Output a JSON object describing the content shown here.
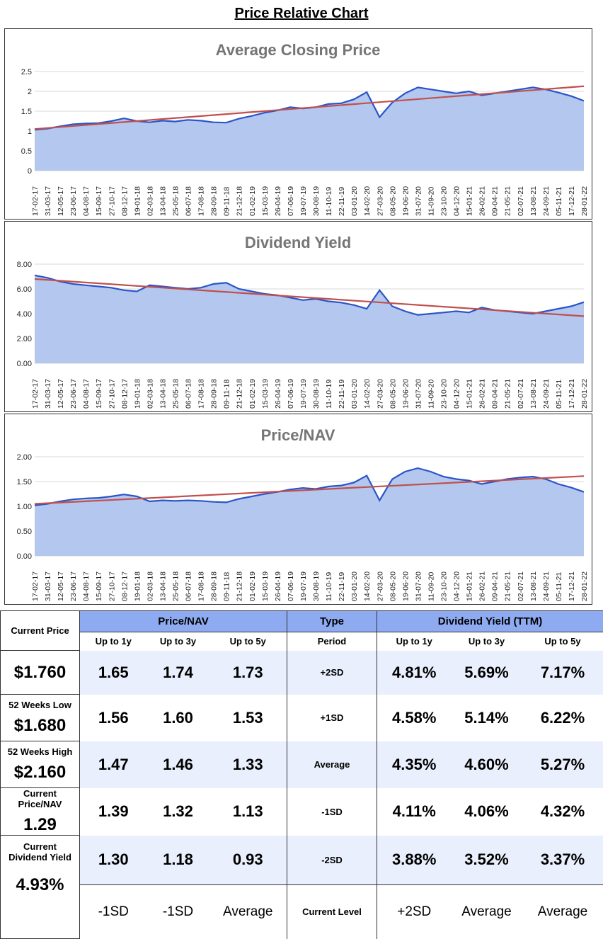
{
  "page": {
    "title": "Price Relative Chart"
  },
  "x_ticks": [
    "17-02-17",
    "31-03-17",
    "12-05-17",
    "23-06-17",
    "04-08-17",
    "15-09-17",
    "27-10-17",
    "08-12-17",
    "19-01-18",
    "02-03-18",
    "13-04-18",
    "25-05-18",
    "06-07-18",
    "17-08-18",
    "28-09-18",
    "09-11-18",
    "21-12-18",
    "01-02-19",
    "15-03-19",
    "26-04-19",
    "07-06-19",
    "19-07-19",
    "30-08-19",
    "11-10-19",
    "22-11-19",
    "03-01-20",
    "14-02-20",
    "27-03-20",
    "08-05-20",
    "19-06-20",
    "31-07-20",
    "11-09-20",
    "23-10-20",
    "04-12-20",
    "15-01-21",
    "26-02-21",
    "09-04-21",
    "21-05-21",
    "02-07-21",
    "13-08-21",
    "24-09-21",
    "05-11-21",
    "17-12-21",
    "28-01-22"
  ],
  "chart_data": [
    {
      "type": "area",
      "title": "Average Closing Price",
      "ylim": [
        0,
        2.5
      ],
      "yticks": [
        "0",
        "0.5",
        "1",
        "1.5",
        "2",
        "2.5"
      ],
      "grid": true,
      "series": [
        {
          "values": [
            1.03,
            1.06,
            1.12,
            1.17,
            1.19,
            1.2,
            1.25,
            1.32,
            1.25,
            1.22,
            1.26,
            1.24,
            1.28,
            1.26,
            1.22,
            1.21,
            1.31,
            1.38,
            1.46,
            1.52,
            1.6,
            1.57,
            1.6,
            1.68,
            1.7,
            1.8,
            1.98,
            1.35,
            1.72,
            1.95,
            2.1,
            2.05,
            2.0,
            1.95,
            2.0,
            1.9,
            1.95,
            2.0,
            2.05,
            2.1,
            2.05,
            1.97,
            1.88,
            1.76
          ]
        }
      ],
      "trend": [
        1.05,
        2.13
      ]
    },
    {
      "type": "area",
      "title": "Dividend Yield",
      "ylim": [
        0,
        8
      ],
      "yticks": [
        "0.00",
        "2.00",
        "4.00",
        "6.00",
        "8.00"
      ],
      "grid": true,
      "series": [
        {
          "values": [
            7.1,
            6.9,
            6.6,
            6.4,
            6.3,
            6.2,
            6.1,
            5.9,
            5.8,
            6.3,
            6.2,
            6.1,
            6.0,
            6.1,
            6.4,
            6.5,
            6.0,
            5.8,
            5.6,
            5.5,
            5.3,
            5.1,
            5.2,
            5.0,
            4.9,
            4.7,
            4.4,
            5.9,
            4.6,
            4.2,
            3.9,
            4.0,
            4.1,
            4.2,
            4.1,
            4.5,
            4.3,
            4.2,
            4.1,
            4.0,
            4.2,
            4.4,
            4.6,
            4.93
          ]
        }
      ],
      "trend": [
        6.8,
        3.8
      ]
    },
    {
      "type": "area",
      "title": "Price/NAV",
      "ylim": [
        0,
        2
      ],
      "yticks": [
        "0.00",
        "0.50",
        "1.00",
        "1.50",
        "2.00"
      ],
      "grid": true,
      "series": [
        {
          "values": [
            1.02,
            1.05,
            1.1,
            1.14,
            1.16,
            1.17,
            1.2,
            1.24,
            1.2,
            1.1,
            1.12,
            1.11,
            1.12,
            1.11,
            1.09,
            1.08,
            1.15,
            1.2,
            1.25,
            1.29,
            1.34,
            1.37,
            1.35,
            1.4,
            1.42,
            1.48,
            1.62,
            1.12,
            1.55,
            1.7,
            1.77,
            1.7,
            1.6,
            1.55,
            1.52,
            1.45,
            1.5,
            1.55,
            1.58,
            1.6,
            1.55,
            1.45,
            1.38,
            1.29
          ]
        }
      ],
      "trend": [
        1.05,
        1.61
      ]
    }
  ],
  "table": {
    "side": [
      {
        "label": "Current Price",
        "value": "$1.760"
      },
      {
        "label": "52 Weeks Low",
        "value": "$1.680"
      },
      {
        "label": "52 Weeks High",
        "value": "$2.160"
      },
      {
        "label": "Current Price/NAV",
        "value": "1.29"
      },
      {
        "label": "Current Dividend Yield",
        "value": "4.93%"
      }
    ],
    "group_headers": {
      "pnav": "Price/NAV",
      "type": "Type",
      "dy": "Dividend Yield (TTM)"
    },
    "sub_headers": {
      "p1": "Up to 1y",
      "p3": "Up to 3y",
      "p5": "Up to 5y",
      "period": "Period",
      "d1": "Up to 1y",
      "d3": "Up to 3y",
      "d5": "Up to 5y"
    },
    "rows": [
      {
        "p": [
          "1.65",
          "1.74",
          "1.73"
        ],
        "type": "+2SD",
        "d": [
          "4.81%",
          "5.69%",
          "7.17%"
        ]
      },
      {
        "p": [
          "1.56",
          "1.60",
          "1.53"
        ],
        "type": "+1SD",
        "d": [
          "4.58%",
          "5.14%",
          "6.22%"
        ]
      },
      {
        "p": [
          "1.47",
          "1.46",
          "1.33"
        ],
        "type": "Average",
        "d": [
          "4.35%",
          "4.60%",
          "5.27%"
        ]
      },
      {
        "p": [
          "1.39",
          "1.32",
          "1.13"
        ],
        "type": "-1SD",
        "d": [
          "4.11%",
          "4.06%",
          "4.32%"
        ]
      },
      {
        "p": [
          "1.30",
          "1.18",
          "0.93"
        ],
        "type": "-2SD",
        "d": [
          "3.88%",
          "3.52%",
          "3.37%"
        ]
      }
    ],
    "current": {
      "p": [
        "-1SD",
        "-1SD",
        "Average"
      ],
      "type": "Current Level",
      "d": [
        "+2SD",
        "Average",
        "Average"
      ]
    }
  }
}
